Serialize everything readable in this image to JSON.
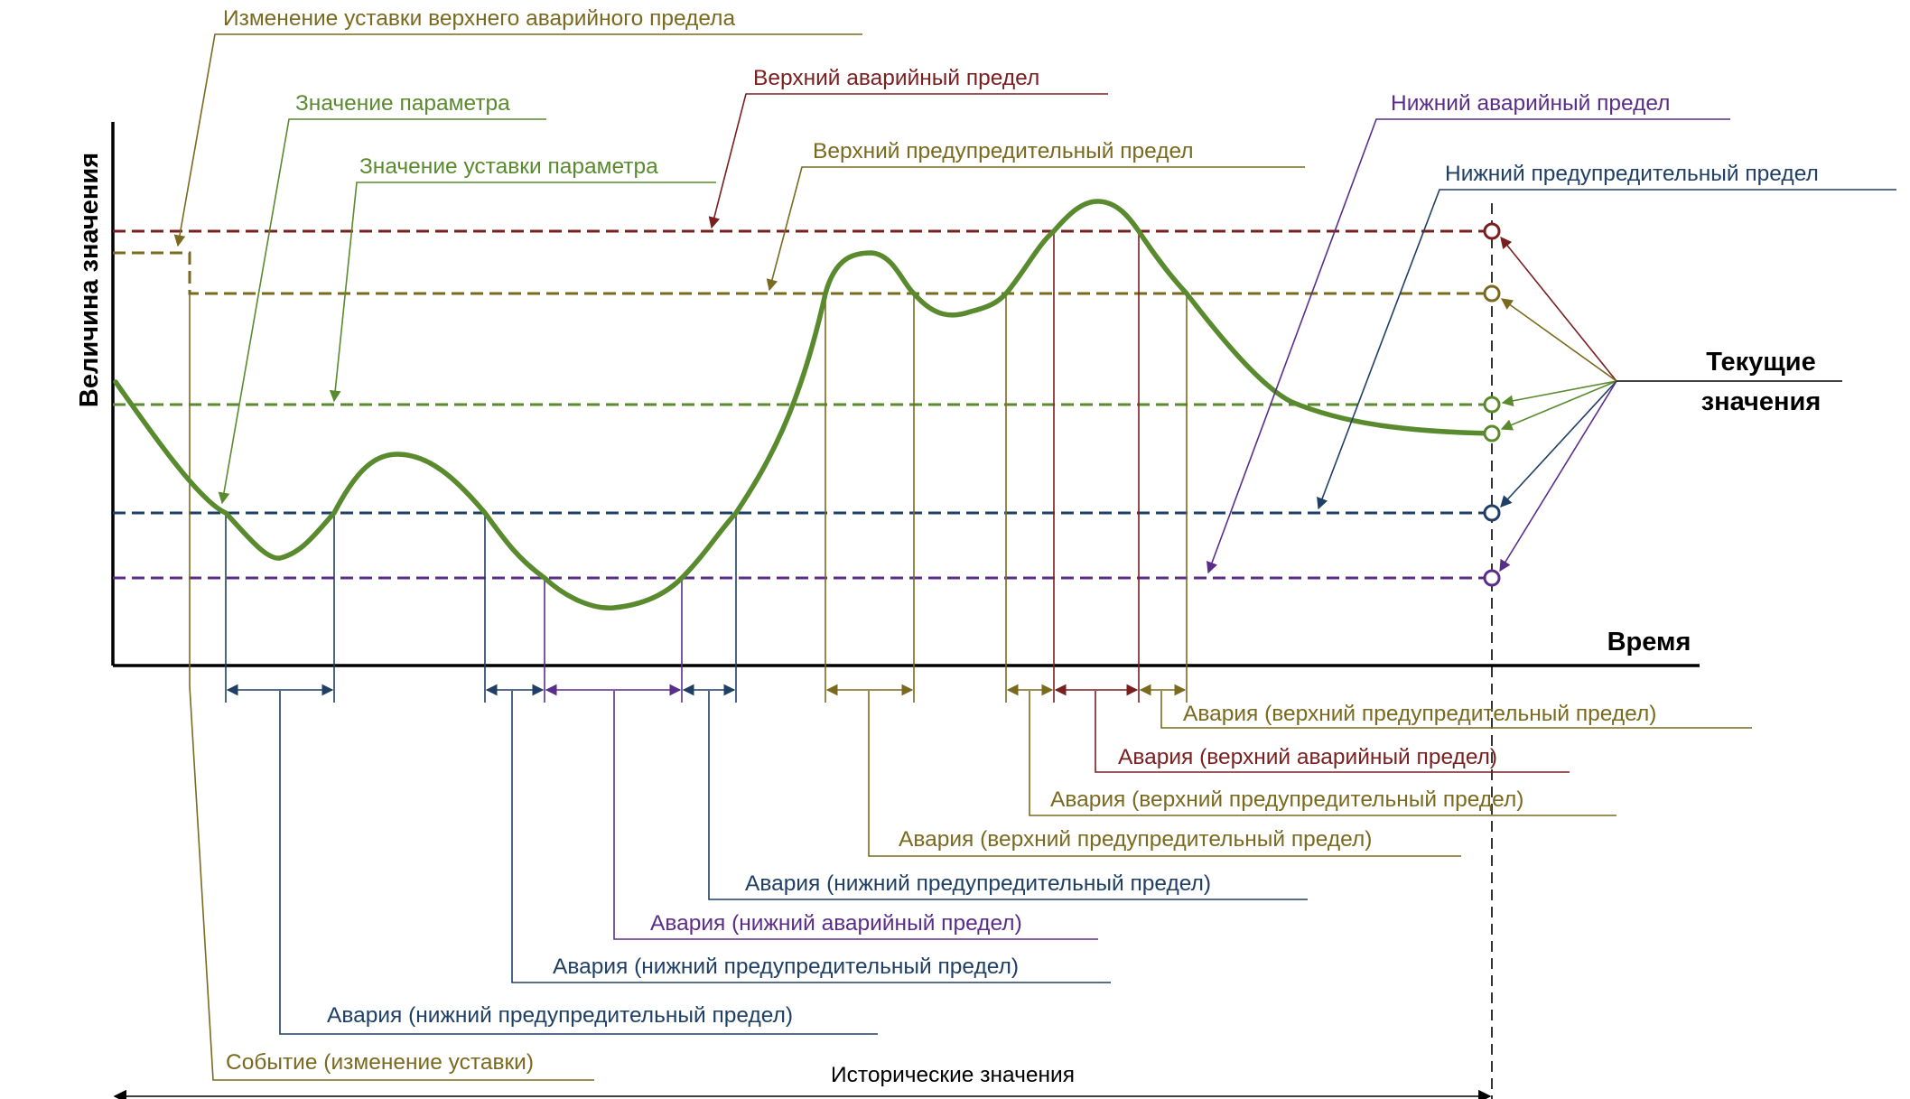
{
  "colors": {
    "param": "#5a8a2e",
    "setpoint_change": "#7a6a1f",
    "high_alarm": "#7a1f1f",
    "high_warning": "#7a6a1f",
    "low_alarm": "#5b2d8a",
    "low_warning": "#1f3f66",
    "setpoint": "#5a8a2e",
    "black": "#000000"
  },
  "axes": {
    "y_label": "Величина значения",
    "x_label": "Время"
  },
  "labels": {
    "setpoint_change": "Изменение уставки верхнего аварийного предела",
    "param_value": "Значение параметра",
    "setpoint_value": "Значение уставки параметра",
    "high_alarm": "Верхний аварийный предел",
    "high_warning": "Верхний предупредительный предел",
    "low_alarm": "Нижний аварийный предел",
    "low_warning": "Нижний предупредительный предел",
    "current_values": [
      "Текущие",
      "значения"
    ],
    "historical_values": "Исторические значения"
  },
  "events": [
    "Авария (верхний предупредительный предел)",
    "Авария (верхний аварийный предел)",
    "Авария (верхний предупредительный предел)",
    "Авария (верхний предупредительный предел)",
    "Авария (нижний предупредительный предел)",
    "Авария (нижний аварийный предел)",
    "Авария (нижний предупредительный предел)",
    "Авария (нижний предупредительный предел)",
    "Событие (изменение уставки)"
  ]
}
